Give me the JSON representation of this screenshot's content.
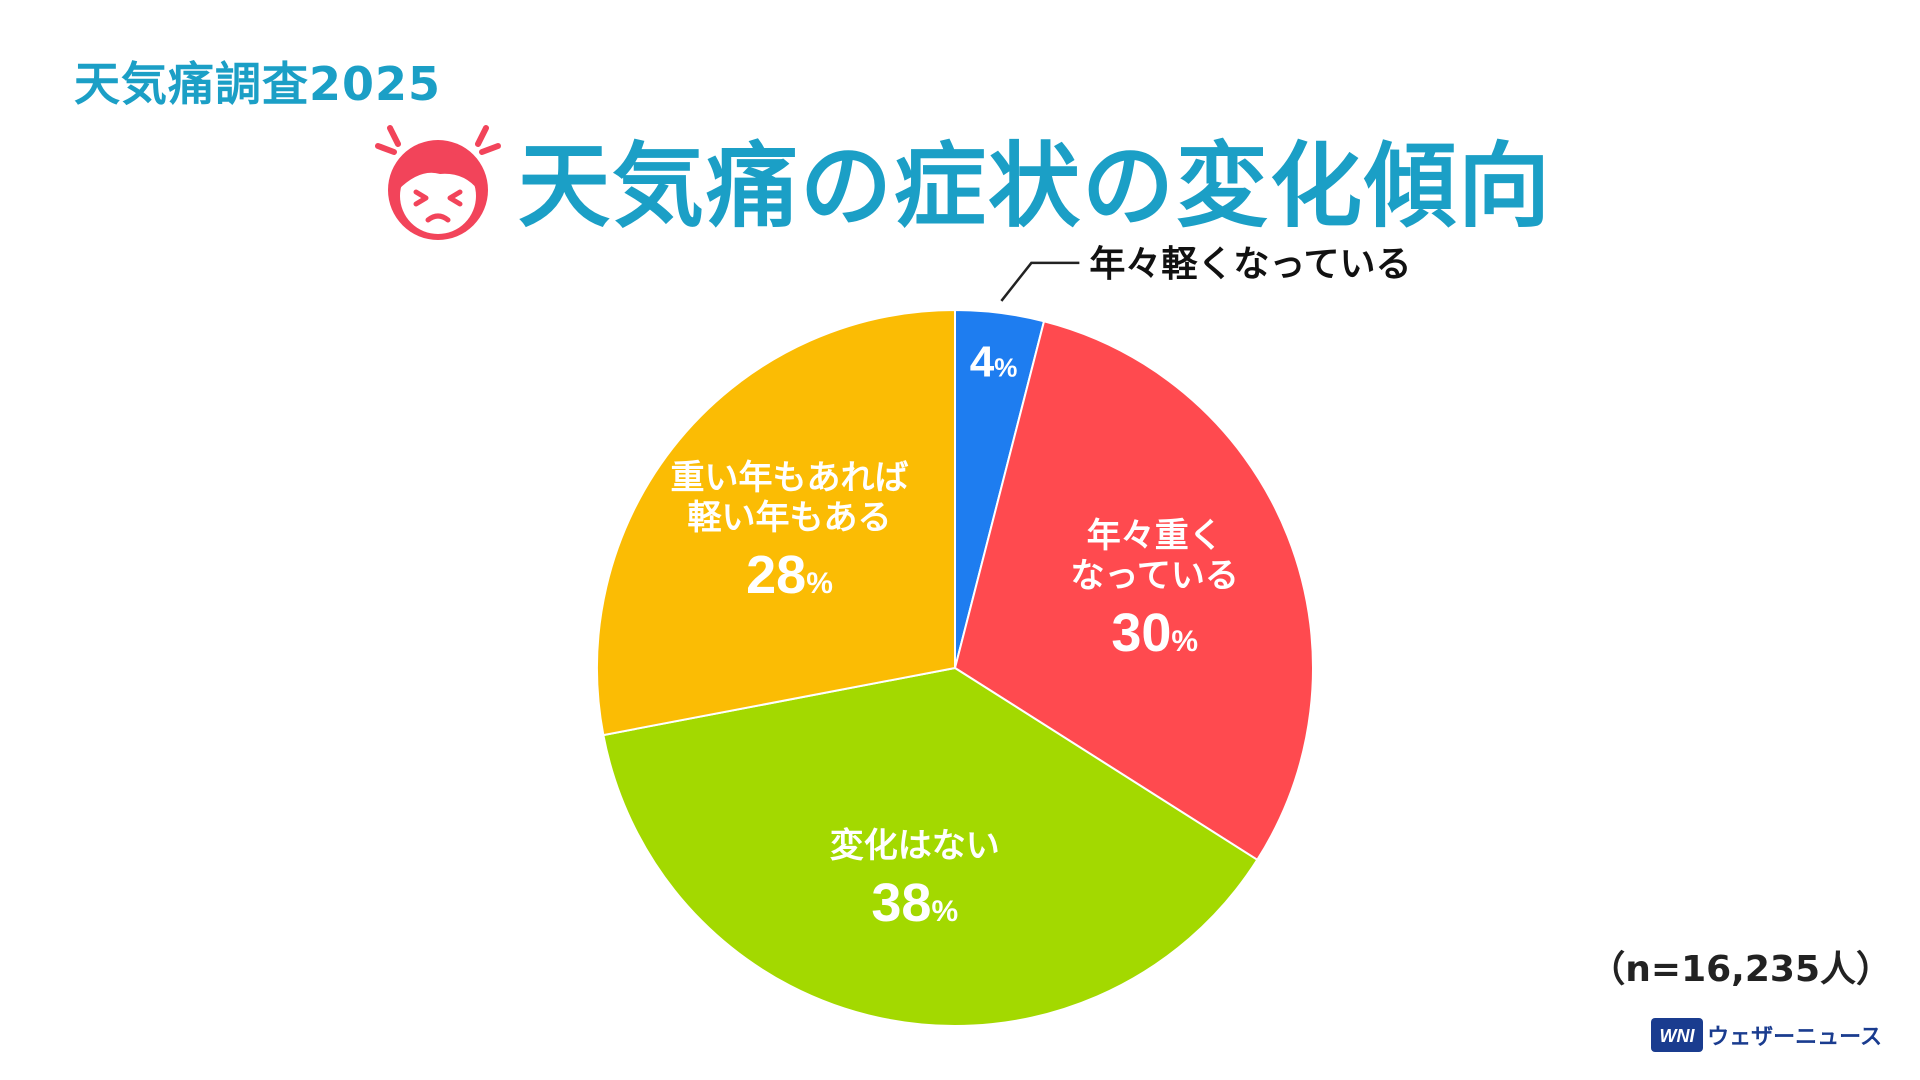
{
  "survey_label": "天気痛調査2025",
  "title": "天気痛の症状の変化傾向",
  "sample_note": "（n=16,235人）",
  "brand_name": "ウェザーニュース",
  "brand_mark": "WNI",
  "chart_data": {
    "type": "pie",
    "title": "天気痛の症状の変化傾向",
    "start_angle": "12 o'clock, clockwise",
    "slices": [
      {
        "label": "年々軽くなっている",
        "label_lines": [
          "年々軽くなっている"
        ],
        "value": 4,
        "pct_text": "4",
        "color": "#1e7df0",
        "label_position": "outside"
      },
      {
        "label": "年々重くなっている",
        "label_lines": [
          "年々重く",
          "なっている"
        ],
        "value": 30,
        "pct_text": "30",
        "color": "#ff4a4f",
        "label_position": "inside"
      },
      {
        "label": "変化はない",
        "label_lines": [
          "変化はない"
        ],
        "value": 38,
        "pct_text": "38",
        "color": "#a3d900",
        "label_position": "inside"
      },
      {
        "label": "重い年もあれば軽い年もある",
        "label_lines": [
          "重い年もあれば",
          "軽い年もある"
        ],
        "value": 28,
        "pct_text": "28",
        "color": "#fbbc04",
        "label_position": "inside"
      }
    ],
    "unit": "%"
  }
}
